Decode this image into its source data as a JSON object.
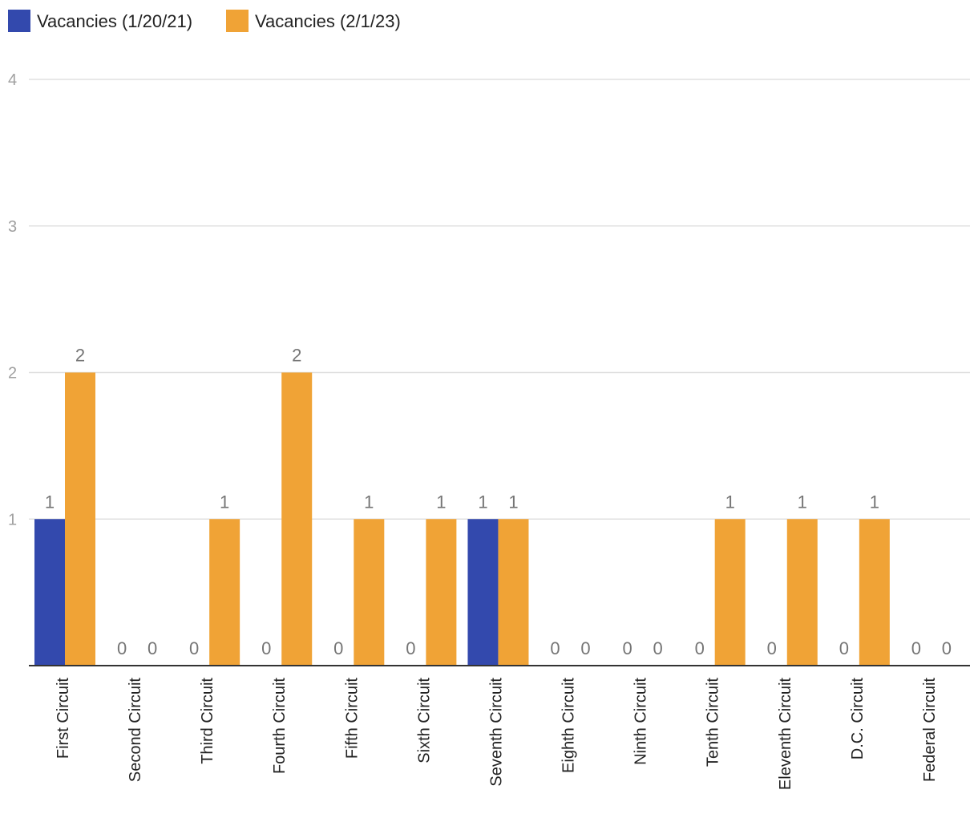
{
  "chart_data": {
    "type": "bar",
    "categories": [
      "First Circuit",
      "Second Circuit",
      "Third Circuit",
      "Fourth Circuit",
      "Fifth Circuit",
      "Sixth Circuit",
      "Seventh Circuit",
      "Eighth Circuit",
      "Ninth Circuit",
      "Tenth Circuit",
      "Eleventh Circuit",
      "D.C. Circuit",
      "Federal Circuit"
    ],
    "series": [
      {
        "name": "Vacancies (1/20/21)",
        "color": "#3349ad",
        "values": [
          1,
          0,
          0,
          0,
          0,
          0,
          1,
          0,
          0,
          0,
          0,
          0,
          0
        ]
      },
      {
        "name": "Vacancies (2/1/23)",
        "color": "#f0a336",
        "values": [
          2,
          0,
          1,
          2,
          1,
          1,
          1,
          0,
          0,
          1,
          1,
          1,
          0
        ]
      }
    ],
    "yticks": [
      1,
      2,
      3,
      4
    ],
    "ylim": [
      0,
      4
    ],
    "legend_position": "top-left",
    "grid": true,
    "data_labels": true
  }
}
